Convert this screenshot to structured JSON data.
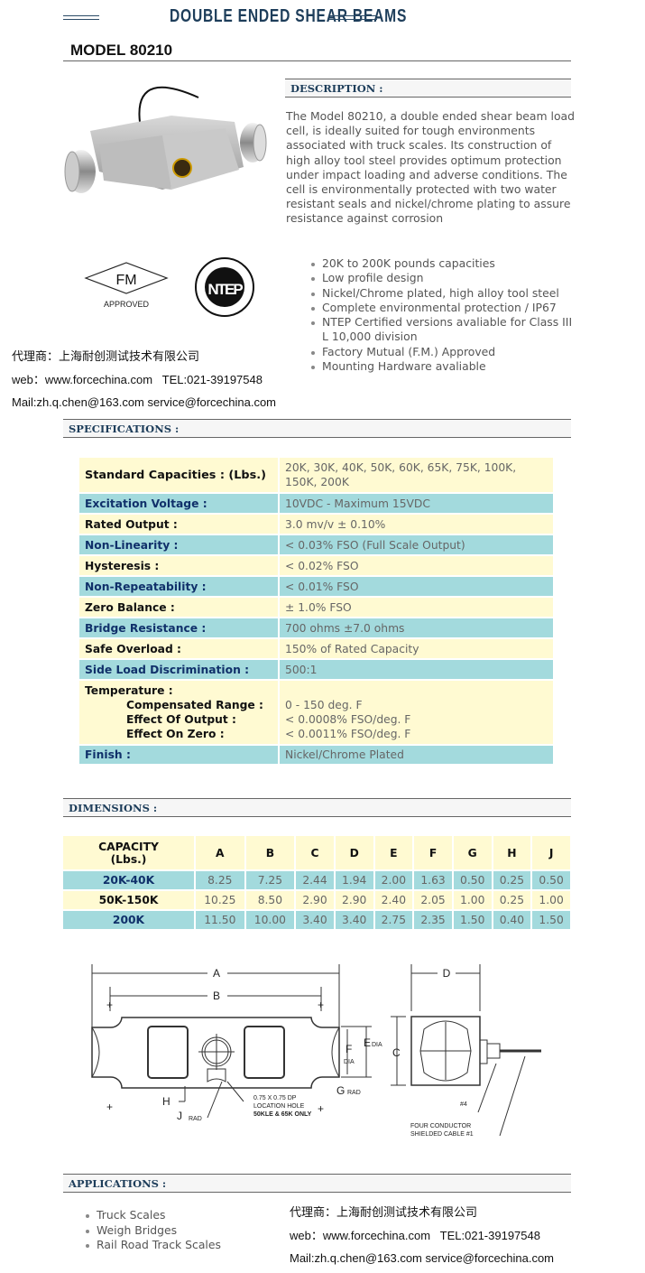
{
  "banner_title": "DOUBLE ENDED SHEAR BEAMS",
  "model": {
    "label": "MODEL",
    "number": "80210"
  },
  "description": {
    "header": "DESCRIPTION :",
    "text": "The Model 80210, a double ended shear beam load cell, is ideally suited for tough environments associated with truck scales. Its construction of high alloy tool steel provides optimum protection under impact loading and adverse conditions. The cell is environmentally protected with two water resistant seals and nickel/chrome plating to assure resistance against corrosion",
    "bullets": [
      "20K to 200K pounds capacities",
      "Low profile design",
      "Nickel/Chrome plated, high alloy tool steel",
      "Complete environmental protection / IP67",
      "NTEP Certified versions avaliable for Class III L 10,000 division",
      "Factory Mutual (F.M.) Approved",
      "Mounting Hardware avaliable"
    ]
  },
  "logos": {
    "fm": "FM",
    "fm_sub": "APPROVED",
    "ntep": "NTEP",
    "ntep_ring": "NATIONAL CONFERENCE ON WEIGHTS AND MEASURES"
  },
  "contact": {
    "agent": "代理商：上海耐创测试技术有限公司",
    "web_tel": "web：www.forcechina.com   TEL:021-39197548",
    "mail": "Mail:zh.q.chen@163.com service@forcechina.com"
  },
  "specifications": {
    "header": "SPECIFICATIONS :",
    "rows": [
      {
        "label": "Standard Capacities : (Lbs.)",
        "value": "20K, 30K, 40K, 50K, 60K, 65K, 75K, 100K, 150K, 200K"
      },
      {
        "label": "Excitation Voltage :",
        "value": "10VDC - Maximum 15VDC"
      },
      {
        "label": "Rated Output :",
        "value": "3.0 mv/v ± 0.10%"
      },
      {
        "label": "Non-Linearity :",
        "value": "< 0.03% FSO (Full Scale Output)"
      },
      {
        "label": "Hysteresis :",
        "value": "< 0.02% FSO"
      },
      {
        "label": "Non-Repeatability :",
        "value": "< 0.01% FSO"
      },
      {
        "label": "Zero Balance :",
        "value": "± 1.0% FSO"
      },
      {
        "label": "Bridge Resistance :",
        "value": "700 ohms ±7.0 ohms"
      },
      {
        "label": "Safe Overload :",
        "value": "150% of Rated Capacity"
      },
      {
        "label": "Side Load Discrimination :",
        "value": "500:1"
      },
      {
        "label": "Temperature :",
        "value": "",
        "sub": [
          {
            "label": "Compensated Range :",
            "value": "0 - 150 deg. F"
          },
          {
            "label": "Effect Of Output :",
            "value": "< 0.0008% FSO/deg. F"
          },
          {
            "label": "Effect On Zero :",
            "value": "< 0.0011% FSO/deg. F"
          }
        ]
      },
      {
        "label": "Finish :",
        "value": "Nickel/Chrome Plated"
      }
    ]
  },
  "dimensions": {
    "header": "DIMENSIONS :",
    "columns": [
      "CAPACITY\n(Lbs.)",
      "A",
      "B",
      "C",
      "D",
      "E",
      "F",
      "G",
      "H",
      "J"
    ],
    "rows": [
      [
        "20K-40K",
        "8.25",
        "7.25",
        "2.44",
        "1.94",
        "2.00",
        "1.63",
        "0.50",
        "0.25",
        "0.50"
      ],
      [
        "50K-150K",
        "10.25",
        "8.50",
        "2.90",
        "2.90",
        "2.40",
        "2.05",
        "1.00",
        "0.25",
        "1.00"
      ],
      [
        "200K",
        "11.50",
        "10.00",
        "3.40",
        "3.40",
        "2.75",
        "2.35",
        "1.50",
        "0.40",
        "1.50"
      ]
    ],
    "drawing": {
      "a": "A",
      "b": "B",
      "c": "C",
      "d": "D",
      "e": "E",
      "f": "F",
      "g": "G",
      "h": "H",
      "j": "J",
      "dia": "DIA",
      "rad": "RAD",
      "hole1": "0.75 X 0.75 DP",
      "hole2": "LOCATION HOLE",
      "hole3": "50KLE & 65K ONLY",
      "n4": "#4",
      "cable1": "FOUR CONDUCTOR",
      "cable2": "SHIELDED CABLE #1"
    }
  },
  "applications": {
    "header": "APPLICATIONS :",
    "items": [
      "Truck Scales",
      "Weigh Bridges",
      "Rail Road Track Scales"
    ]
  },
  "colors": {
    "yellow_row": "#fffad2",
    "teal_row": "#a3dadd",
    "title_navy": "#1d3d5a"
  }
}
